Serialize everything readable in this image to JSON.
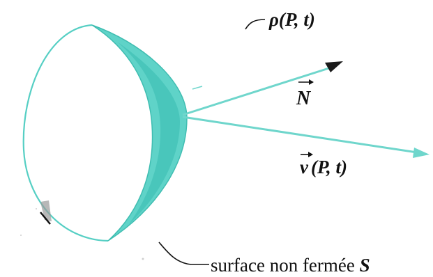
{
  "labels": {
    "density": {
      "symbol": "ρ",
      "args": "(P, t)"
    },
    "normal": {
      "symbol": "N"
    },
    "velocity": {
      "symbol": "v",
      "args": "(P, t)"
    },
    "surface": {
      "text": "surface non fermée",
      "symbol": "S"
    }
  },
  "colors": {
    "surface_fill": "#5fd3c8",
    "surface_shade": "#3dbfb3",
    "outline": "#56cfc4",
    "arrow": "#6fd6cc",
    "arrow_head": "#1a1a1a",
    "ink": "#111111"
  }
}
